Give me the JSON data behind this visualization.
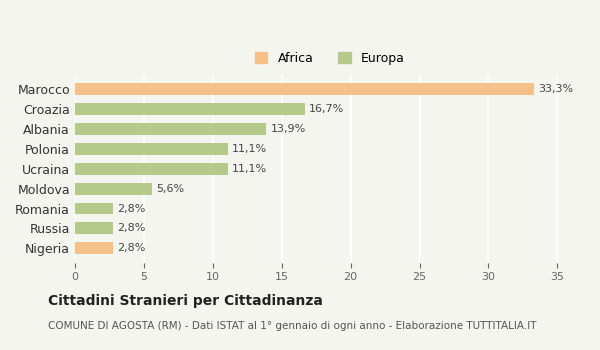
{
  "countries": [
    "Nigeria",
    "Russia",
    "Romania",
    "Moldova",
    "Ucraina",
    "Polonia",
    "Albania",
    "Croazia",
    "Marocco"
  ],
  "values": [
    2.8,
    2.8,
    2.8,
    5.6,
    11.1,
    11.1,
    13.9,
    16.7,
    33.3
  ],
  "labels": [
    "2,8%",
    "2,8%",
    "2,8%",
    "5,6%",
    "11,1%",
    "11,1%",
    "13,9%",
    "16,7%",
    "33,3%"
  ],
  "continents": [
    "Africa",
    "Europa",
    "Europa",
    "Europa",
    "Europa",
    "Europa",
    "Europa",
    "Europa",
    "Africa"
  ],
  "color_africa": "#F5C08A",
  "color_europa": "#B5C98A",
  "background_color": "#f5f5f0",
  "title": "Cittadini Stranieri per Cittadinanza",
  "subtitle": "COMUNE DI AGOSTA (RM) - Dati ISTAT al 1° gennaio di ogni anno - Elaborazione TUTTITALIA.IT",
  "xlim": [
    0,
    37
  ],
  "xticks": [
    0,
    5,
    10,
    15,
    20,
    25,
    30,
    35
  ],
  "legend_africa": "Africa",
  "legend_europa": "Europa"
}
